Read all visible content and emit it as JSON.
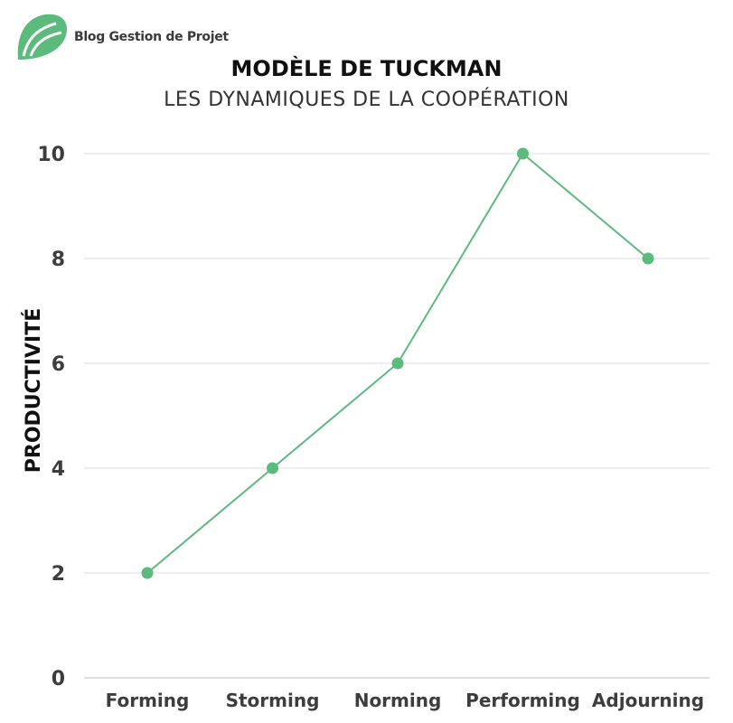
{
  "brand": {
    "name": "Blog Gestion de Projet",
    "icon": "leaf-logo-icon",
    "color": "#5cba7d"
  },
  "chart_data": {
    "type": "line",
    "title": "MODÈLE DE TUCKMAN",
    "subtitle": "LES DYNAMIQUES DE LA COOPÉRATION",
    "xlabel": "",
    "ylabel": "PRODUCTIVITÉ",
    "categories": [
      "Forming",
      "Storming",
      "Norming",
      "Performing",
      "Adjourning"
    ],
    "series": [
      {
        "values": [
          2,
          4,
          6,
          10,
          8
        ],
        "color": "#5cba7d"
      }
    ],
    "ylim": [
      0,
      10
    ],
    "yticks": [
      0,
      2,
      4,
      6,
      8,
      10
    ],
    "grid": true,
    "legend": "none"
  }
}
